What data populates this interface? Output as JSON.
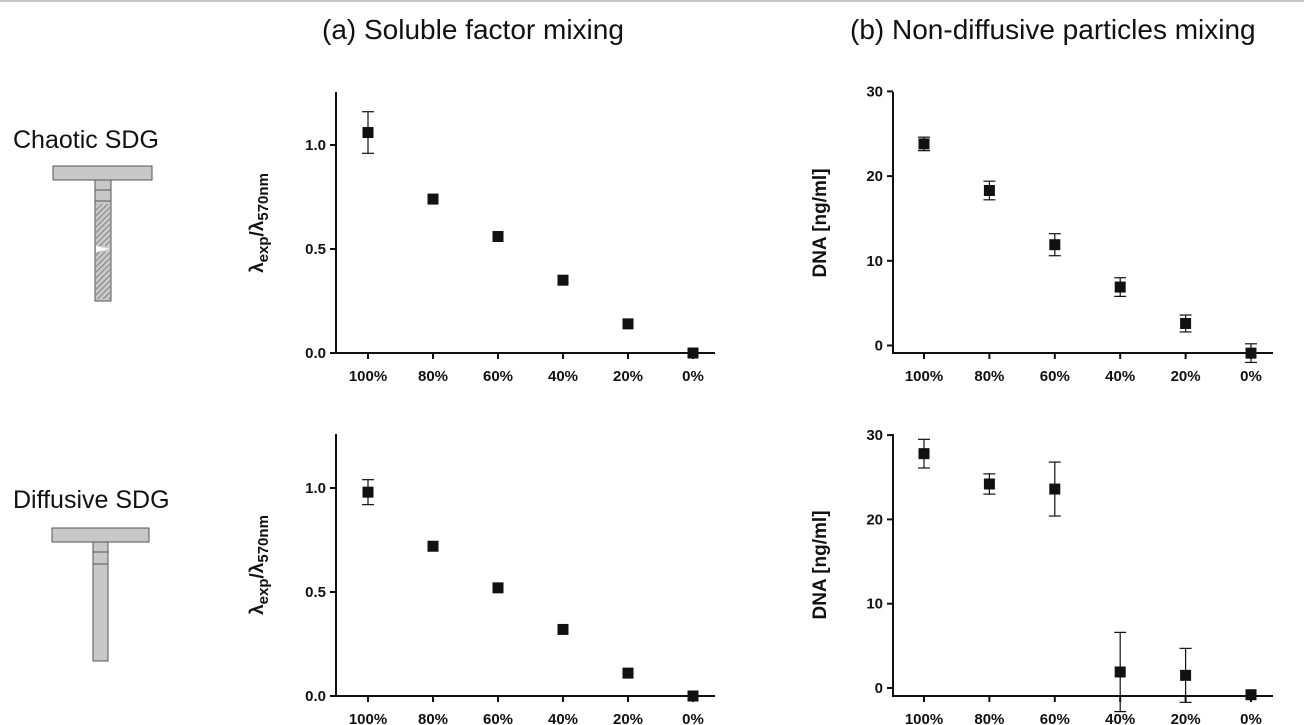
{
  "titles": {
    "a": "(a) Soluble factor mixing",
    "b": "(b) Non-diffusive particles mixing"
  },
  "row_labels": {
    "chaotic": "Chaotic SDG",
    "diffusive": "Diffusive SDG"
  },
  "colors": {
    "marker": "#111111",
    "axis": "#111111",
    "device_fill": "#c8c8c8",
    "device_stroke": "#555555"
  },
  "chart_data": [
    {
      "type": "scatter",
      "panel": "a",
      "row": "chaotic",
      "categories": [
        "100%",
        "80%",
        "60%",
        "40%",
        "20%",
        "0%"
      ],
      "values": [
        1.06,
        0.74,
        0.56,
        0.35,
        0.14,
        0.0
      ],
      "errors": [
        0.1,
        0,
        0,
        0,
        0,
        0
      ],
      "ylabel": {
        "base": "λ",
        "sub1": "exp",
        "sep": "/λ",
        "sub2": "570nm"
      },
      "ylim": [
        0,
        1.25
      ],
      "yticks": [
        0.0,
        0.5,
        1.0
      ],
      "ytick_labels": [
        "0.0",
        "0.5",
        "1.0"
      ],
      "grid": false
    },
    {
      "type": "scatter",
      "panel": "b",
      "row": "chaotic",
      "categories": [
        "100%",
        "80%",
        "60%",
        "40%",
        "20%",
        "0%"
      ],
      "values": [
        23.8,
        18.3,
        11.9,
        6.9,
        2.6,
        -0.9
      ],
      "errors": [
        0.8,
        1.1,
        1.3,
        1.1,
        1.0,
        1.1
      ],
      "ylabel": "DNA [ng/ml]",
      "ylim": [
        -1,
        30
      ],
      "yticks": [
        0,
        10,
        20,
        30
      ],
      "ytick_labels": [
        "0",
        "10",
        "20",
        "30"
      ],
      "grid": false
    },
    {
      "type": "scatter",
      "panel": "a",
      "row": "diffusive",
      "categories": [
        "100%",
        "80%",
        "60%",
        "40%",
        "20%",
        "0%"
      ],
      "values": [
        0.98,
        0.72,
        0.52,
        0.32,
        0.11,
        0.0
      ],
      "errors": [
        0.06,
        0,
        0,
        0,
        0,
        0
      ],
      "ylabel": {
        "base": "λ",
        "sub1": "exp",
        "sep": "/λ",
        "sub2": "570nm"
      },
      "ylim": [
        0,
        1.25
      ],
      "yticks": [
        0.0,
        0.5,
        1.0
      ],
      "ytick_labels": [
        "0.0",
        "0.5",
        "1.0"
      ],
      "grid": false
    },
    {
      "type": "scatter",
      "panel": "b",
      "row": "diffusive",
      "categories": [
        "100%",
        "80%",
        "60%",
        "40%",
        "20%",
        "0%"
      ],
      "values": [
        27.8,
        24.2,
        23.6,
        1.9,
        1.5,
        -0.8
      ],
      "errors": [
        1.7,
        1.2,
        3.2,
        4.7,
        3.2,
        0
      ],
      "ylabel": "DNA [ng/ml]",
      "ylim": [
        -1,
        30
      ],
      "yticks": [
        0,
        10,
        20,
        30
      ],
      "ytick_labels": [
        "0",
        "10",
        "20",
        "30"
      ],
      "grid": false
    }
  ]
}
